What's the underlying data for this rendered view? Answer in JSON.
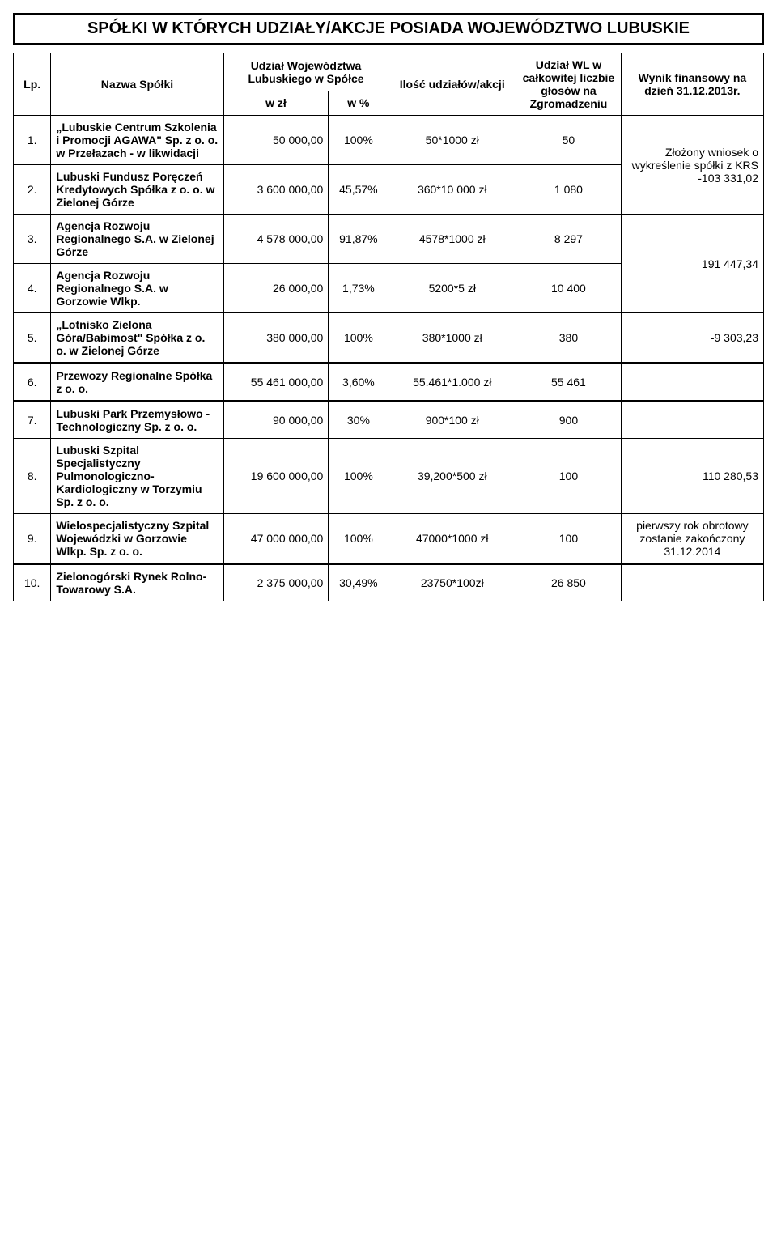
{
  "title": "SPÓŁKI W KTÓRYCH UDZIAŁY/AKCJE POSIADA WOJEWÓDZTWO LUBUSKIE",
  "headers": {
    "lp": "Lp.",
    "nazwa": "Nazwa Spółki",
    "udzial_woj": "Udział Województwa Lubuskiego w Spółce",
    "w_zl": "w zł",
    "w_pct": "w %",
    "ilosc": "Ilość udziałów/akcji",
    "udzial_wl": "Udział WL w całkowitej liczbie głosów na Zgromadzeniu",
    "wynik": "Wynik finansowy na dzień 31.12.2013r."
  },
  "rows": [
    {
      "lp": "1.",
      "name": "„Lubuskie Centrum Szkolenia i Promocji AGAWA\" Sp. z o. o. w Przełazach - w likwidacji",
      "zl": "50 000,00",
      "pct": "100%",
      "ilosc": "50*1000 zł",
      "udzial": "50",
      "wynik": "Złożony wniosek o wykreślenie spółki z KRS -103 331,02",
      "wynik_rowspan": 1
    },
    {
      "lp": "2.",
      "name": "Lubuski Fundusz Poręczeń Kredytowych Spółka z o. o. w Zielonej Górze",
      "zl": "3 600 000,00",
      "pct": "45,57%",
      "ilosc": "360*10 000 zł",
      "udzial": "1 080",
      "wynik_rowspan": 0
    },
    {
      "lp": "3.",
      "name": "Agencja Rozwoju Regionalnego S.A. w Zielonej Górze",
      "zl": "4 578 000,00",
      "pct": "91,87%",
      "ilosc": "4578*1000 zł",
      "udzial": "8 297",
      "wynik": "191 447,34",
      "wynik_rowspan": 1
    },
    {
      "lp": "4.",
      "name": "Agencja Rozwoju Regionalnego S.A. w Gorzowie Wlkp.",
      "zl": "26 000,00",
      "pct": "1,73%",
      "ilosc": "5200*5 zł",
      "udzial": "10 400",
      "wynik_rowspan": 0
    },
    {
      "lp": "5.",
      "name": "„Lotnisko Zielona Góra/Babimost\" Spółka z o. o. w Zielonej Górze",
      "zl": "380 000,00",
      "pct": "100%",
      "ilosc": "380*1000 zł",
      "udzial": "380",
      "wynik": "-9 303,23",
      "wynik_rowspan": 1
    },
    {
      "lp": "6.",
      "name": "Przewozy Regionalne Spółka z o. o.",
      "zl": "55 461 000,00",
      "pct": "3,60%",
      "ilosc": "55.461*1.000 zł",
      "udzial": "55 461",
      "wynik": "",
      "wynik_rowspan": 1,
      "thick": true
    },
    {
      "lp": "7.",
      "name": "Lubuski Park Przemysłowo - Technologiczny Sp. z o. o.",
      "zl": "90 000,00",
      "pct": "30%",
      "ilosc": "900*100 zł",
      "udzial": "900",
      "wynik": "",
      "wynik_rowspan": 1,
      "thick": true
    },
    {
      "lp": "8.",
      "name": "Lubuski Szpital Specjalistyczny Pulmonologiczno-Kardiologiczny w Torzymiu Sp. z o. o.",
      "zl": "19 600 000,00",
      "pct": "100%",
      "ilosc": "39,200*500 zł",
      "udzial": "100",
      "wynik": "110 280,53",
      "wynik_rowspan": 1
    },
    {
      "lp": "9.",
      "name": "Wielospecjalistyczny Szpital Wojewódzki w Gorzowie Wlkp.       Sp. z o. o.",
      "zl": "47 000 000,00",
      "pct": "100%",
      "ilosc": "47000*1000 zł",
      "udzial": "100",
      "wynik": "pierwszy rok obrotowy zostanie zakończony 31.12.2014",
      "wynik_rowspan": 1
    },
    {
      "lp": "10.",
      "name": "Zielonogórski Rynek Rolno-Towarowy S.A.",
      "zl": "2 375 000,00",
      "pct": "30,49%",
      "ilosc": "23750*100zł",
      "udzial": "26 850",
      "wynik": "",
      "wynik_rowspan": 1,
      "thick": true
    }
  ],
  "style": {
    "font_family": "Arial",
    "title_fontsize": 20,
    "cell_fontsize": 14,
    "border_color": "#000000",
    "background_color": "#ffffff",
    "text_color": "#000000"
  }
}
